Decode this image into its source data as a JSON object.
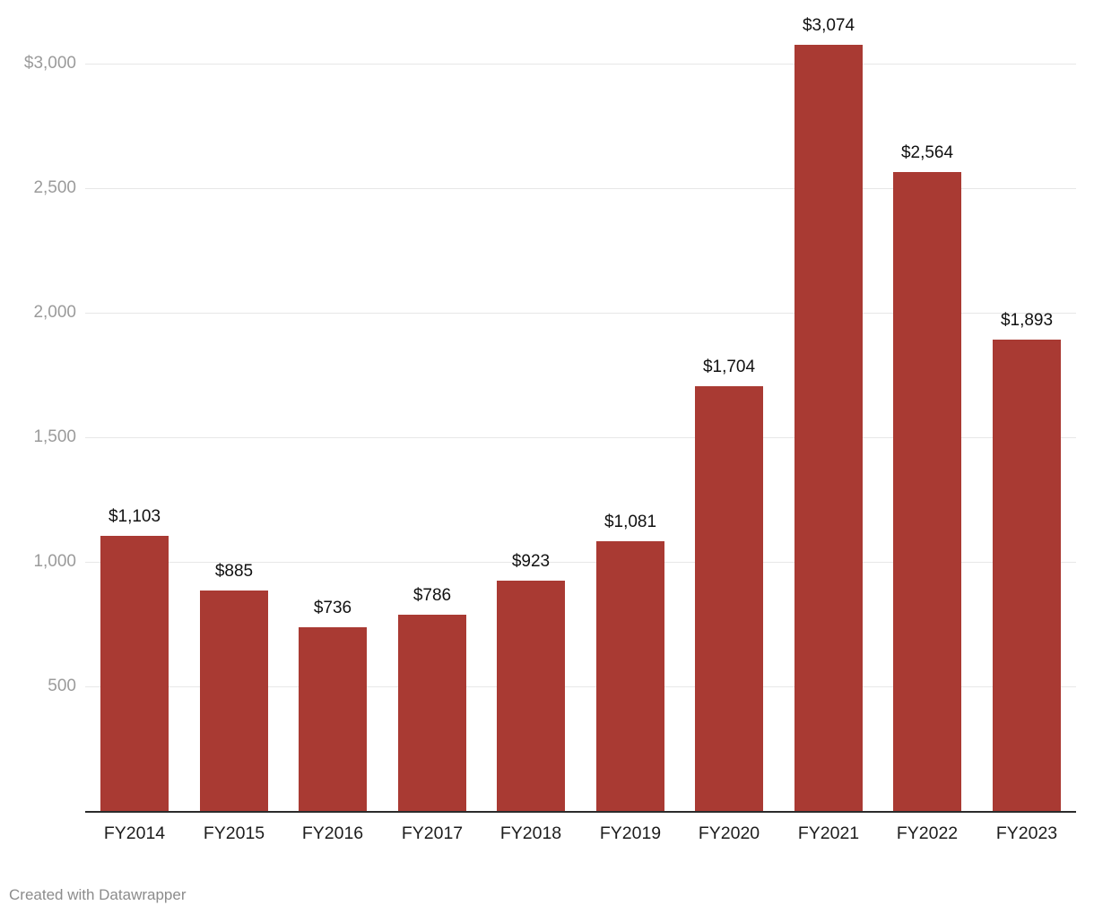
{
  "chart_data": {
    "type": "bar",
    "title": "",
    "xlabel": "",
    "ylabel": "",
    "categories": [
      "FY2014",
      "FY2015",
      "FY2016",
      "FY2017",
      "FY2018",
      "FY2019",
      "FY2020",
      "FY2021",
      "FY2022",
      "FY2023"
    ],
    "values": [
      1103,
      885,
      736,
      786,
      923,
      1081,
      1704,
      3074,
      2564,
      1893
    ],
    "value_labels": [
      "$1,103",
      "$885",
      "$736",
      "$786",
      "$923",
      "$1,081",
      "$1,704",
      "$3,074",
      "$2,564",
      "$1,893"
    ],
    "ylim": [
      0,
      3250
    ],
    "grid": true,
    "legend": "none",
    "yticks": [
      {
        "value": 500,
        "label": "500"
      },
      {
        "value": 1000,
        "label": "1,000"
      },
      {
        "value": 1500,
        "label": "1,500"
      },
      {
        "value": 2000,
        "label": "2,000"
      },
      {
        "value": 2500,
        "label": "2,500"
      },
      {
        "value": 3000,
        "label": "$3,000"
      }
    ],
    "colors": {
      "bar": "#a93a33",
      "grid": "#e7e7e7",
      "ytick_label": "#9b9b9b",
      "value_label": "#111111",
      "xtick_label": "#1c1c1c",
      "axis_line": "#2b2b2b",
      "footer_text": "#8c8c8c"
    }
  },
  "footer": {
    "credit": "Created with Datawrapper"
  }
}
